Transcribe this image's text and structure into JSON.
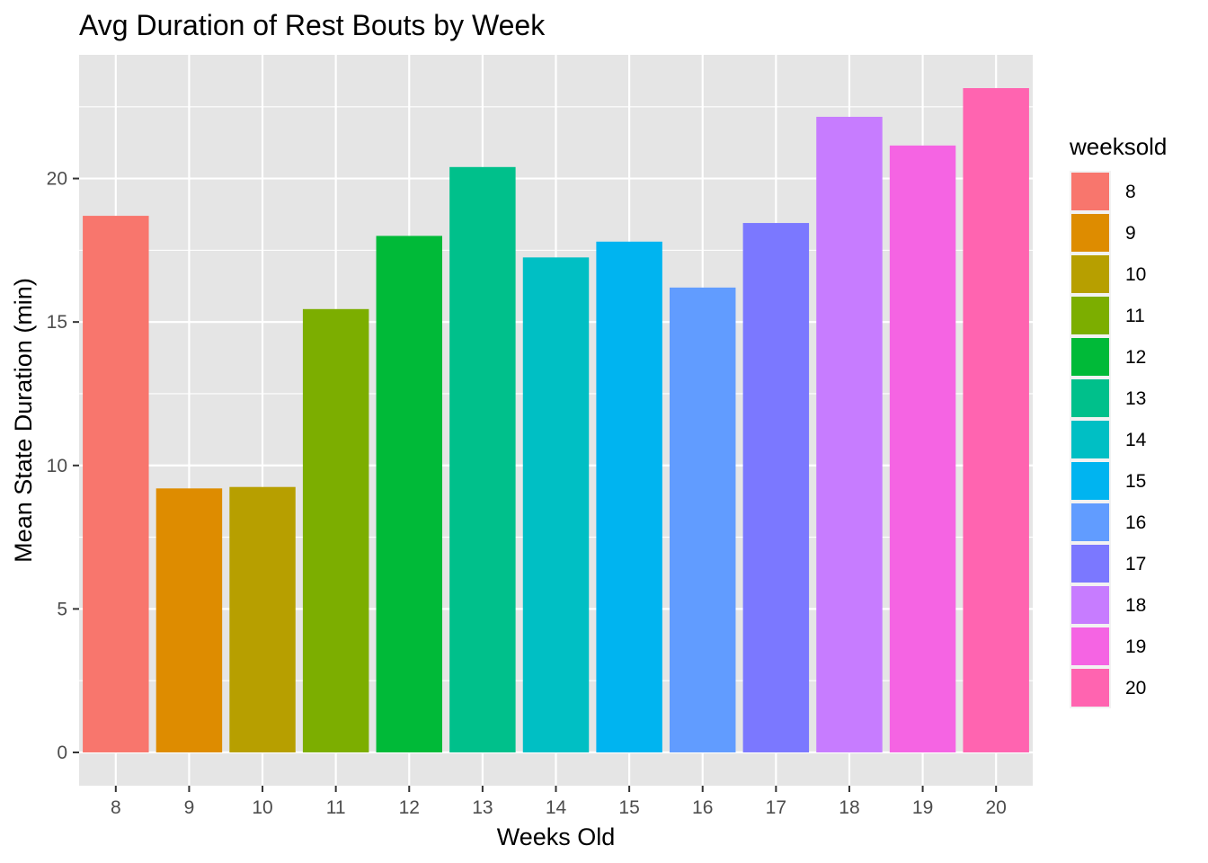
{
  "chart_data": {
    "type": "bar",
    "title": "Avg Duration of Rest Bouts by Week",
    "xlabel": "Weeks Old",
    "ylabel": "Mean State Duration (min)",
    "categories": [
      "8",
      "9",
      "10",
      "11",
      "12",
      "13",
      "14",
      "15",
      "16",
      "17",
      "18",
      "19",
      "20"
    ],
    "values": [
      18.7,
      9.2,
      9.25,
      15.45,
      18.0,
      20.4,
      17.25,
      17.8,
      16.2,
      18.45,
      22.15,
      21.15,
      23.15
    ],
    "colors": [
      "#F8766D",
      "#DE8C00",
      "#B79F00",
      "#7CAE00",
      "#00BA38",
      "#00C08B",
      "#00BFC4",
      "#00B4F0",
      "#619CFF",
      "#7B78FF",
      "#C77CFF",
      "#F564E3",
      "#FF64B0"
    ],
    "ylim": [
      -1.16,
      24.31
    ],
    "yticks": [
      0,
      5,
      10,
      15,
      20
    ],
    "ytick_labels": [
      "0",
      "5",
      "10",
      "15",
      "20"
    ],
    "grid": true,
    "panel_background": "#E5E5E5",
    "grid_color": "#FFFFFF",
    "legend": {
      "title": "weeksold",
      "position": "right",
      "labels": [
        "8",
        "9",
        "10",
        "11",
        "12",
        "13",
        "14",
        "15",
        "16",
        "17",
        "18",
        "19",
        "20"
      ]
    }
  }
}
